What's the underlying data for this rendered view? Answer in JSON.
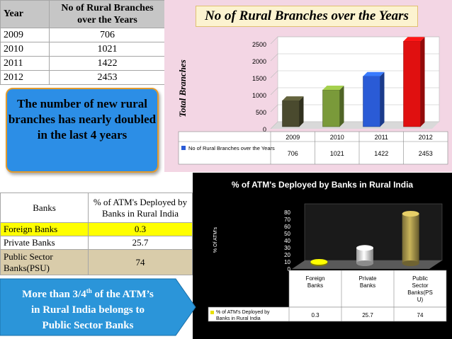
{
  "table1": {
    "headers": [
      "Year",
      "No of Rural Branches over the Years"
    ],
    "rows": [
      [
        "2009",
        "706"
      ],
      [
        "2010",
        "1021"
      ],
      [
        "2011",
        "1422"
      ],
      [
        "2012",
        "2453"
      ]
    ]
  },
  "callout1": {
    "text": "The number of new rural branches has nearly doubled in the last 4 years"
  },
  "table2": {
    "headers": [
      "Banks",
      "% of ATM's Deployed by Banks in Rural India"
    ],
    "rows": [
      [
        "Foreign Banks",
        "0.3"
      ],
      [
        "Private Banks",
        "25.7"
      ],
      [
        "Public Sector Banks(PSU)",
        "74"
      ]
    ]
  },
  "callout2": {
    "line1_pre": "More than 3/4",
    "line1_sup": "th",
    "line1_post": " of the ATM’s",
    "line2": "in Rural India belongs to",
    "line3": "Public Sector Banks"
  },
  "colors": {
    "bar_dark": "#4a4a2e",
    "bar_olive": "#7a9a3a",
    "bar_blue": "#2a5bd6",
    "bar_red": "#e01010",
    "legend_blue": "#2a5bd6",
    "yellow_row": "#ffff00",
    "psu_row": "#d9ccaa"
  },
  "chart_data": [
    {
      "type": "bar",
      "title": "No of Rural Branches over the Years",
      "ylabel": "Total Branches",
      "categories": [
        "2009",
        "2010",
        "2011",
        "2012"
      ],
      "series": [
        {
          "name": "No of Rural Branches over the Years",
          "values": [
            706,
            1021,
            1422,
            2453
          ]
        }
      ],
      "ylim": [
        0,
        2500
      ],
      "yticks": [
        0,
        500,
        1000,
        1500,
        2000,
        2500
      ],
      "legend": "bottom-table"
    },
    {
      "type": "bar",
      "title": "% of ATM's Deployed by Banks in Rural India",
      "ylabel": "% Of ATM's",
      "categories": [
        "Foreign Banks",
        "Private Banks",
        "Public Sector Banks(PSU)"
      ],
      "category_lines": [
        [
          "Foreign",
          "Banks"
        ],
        [
          "Private",
          "Banks"
        ],
        [
          "Public",
          "Sector",
          "Banks(PS",
          "U)"
        ]
      ],
      "series": [
        {
          "name": "% of ATM's Deployed by Banks in Rural India",
          "name_lines": [
            "% of ATM's Deployed by",
            "Banks in Rural India"
          ],
          "values": [
            0.3,
            25.7,
            74
          ]
        }
      ],
      "ylim": [
        0,
        80
      ],
      "yticks": [
        0,
        10,
        20,
        30,
        40,
        50,
        60,
        70,
        80
      ],
      "legend": "bottom-table"
    }
  ]
}
